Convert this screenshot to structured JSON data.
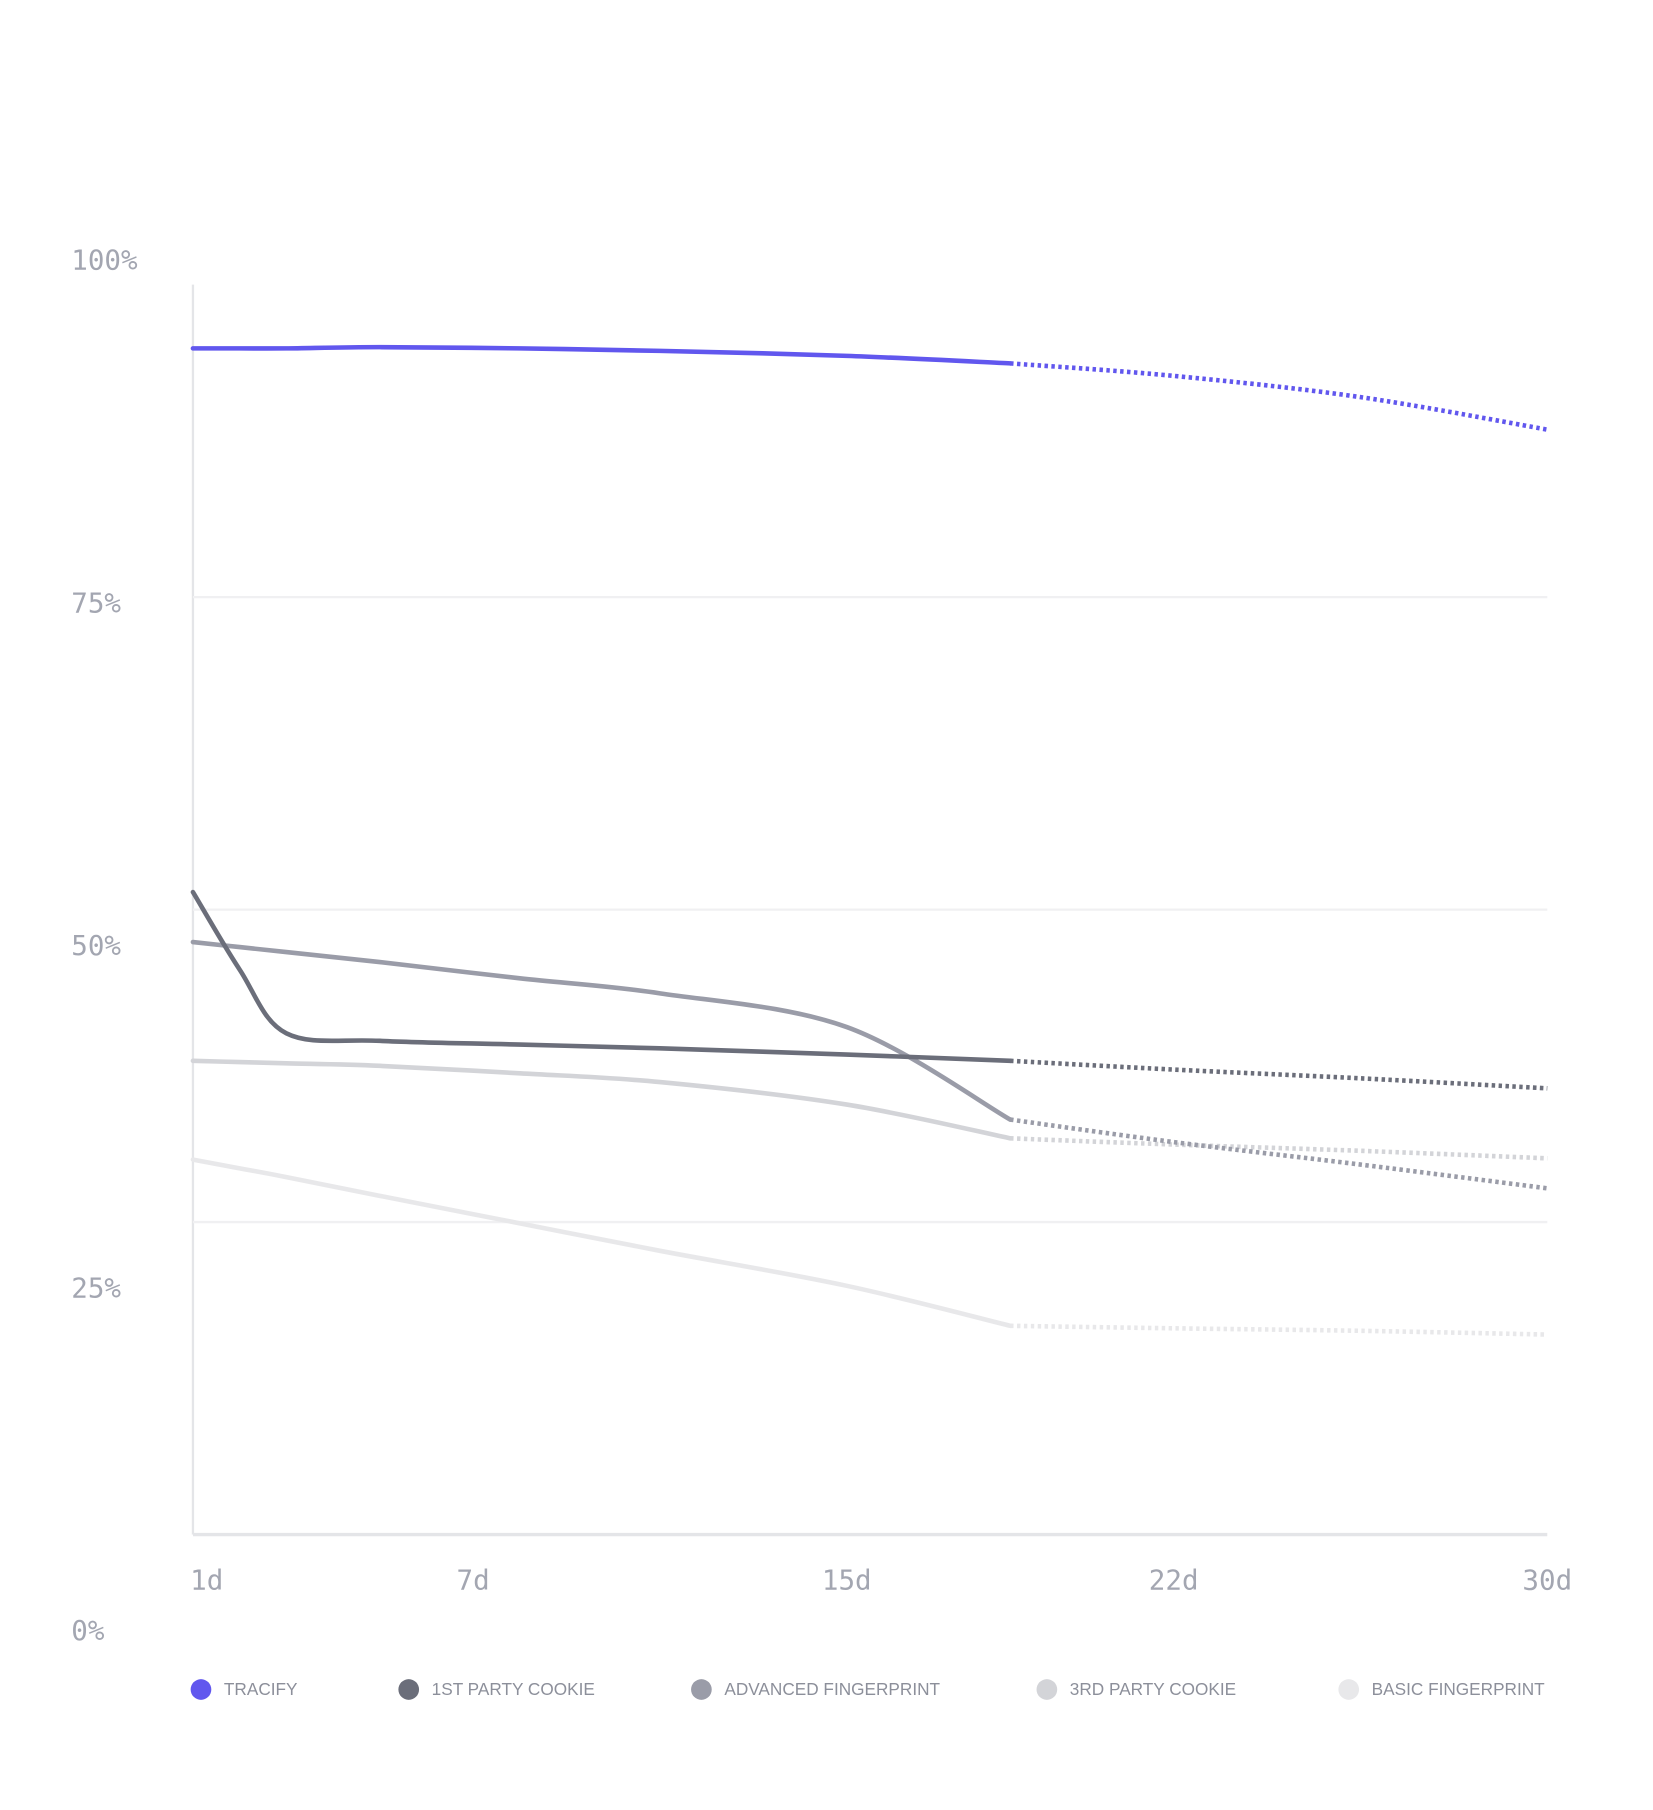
{
  "chart_data": {
    "type": "line",
    "x": [
      1,
      2,
      3,
      5,
      8,
      11,
      15,
      18.5,
      22,
      26,
      30
    ],
    "xlim": [
      1,
      30
    ],
    "xticks": [
      {
        "value": 1,
        "label": "1d"
      },
      {
        "value": 7,
        "label": "7d"
      },
      {
        "value": 15,
        "label": "15d"
      },
      {
        "value": 22,
        "label": "22d"
      },
      {
        "value": 30,
        "label": "30d"
      }
    ],
    "ylim": [
      0,
      100
    ],
    "yticks": [
      {
        "value": 0,
        "label": "0%"
      },
      {
        "value": 25,
        "label": "25%"
      },
      {
        "value": 50,
        "label": "50%"
      },
      {
        "value": 75,
        "label": "75%"
      },
      {
        "value": 100,
        "label": "100%"
      }
    ],
    "grid": true,
    "dash_from_x": 18.5,
    "legend": "bottom",
    "series": [
      {
        "name": "TRACIFY",
        "color": "#6157ee",
        "values": [
          94.9,
          94.9,
          94.9,
          95.0,
          94.9,
          94.7,
          94.3,
          93.7,
          92.7,
          91.0,
          88.4
        ]
      },
      {
        "name": "1ST PARTY COOKIE",
        "color": "#6b6e7a",
        "values": [
          51.4,
          45.2,
          40.1,
          39.5,
          39.2,
          38.9,
          38.4,
          37.9,
          37.2,
          36.5,
          35.7
        ]
      },
      {
        "name": "ADVANCED FINGERPRINT",
        "color": "#9a9ca8",
        "values": [
          47.4,
          47.0,
          46.6,
          45.8,
          44.5,
          43.3,
          40.6,
          33.2,
          31.4,
          29.6,
          27.7
        ]
      },
      {
        "name": "3RD PARTY COOKIE",
        "color": "#d3d4d8",
        "values": [
          37.9,
          37.8,
          37.7,
          37.5,
          36.9,
          36.2,
          34.4,
          31.7,
          31.2,
          30.7,
          30.1
        ]
      },
      {
        "name": "BASIC FINGERPRINT",
        "color": "#e8e8ea",
        "values": [
          30.0,
          29.3,
          28.6,
          27.1,
          24.9,
          22.7,
          19.9,
          16.7,
          16.5,
          16.3,
          16.0
        ]
      }
    ]
  }
}
